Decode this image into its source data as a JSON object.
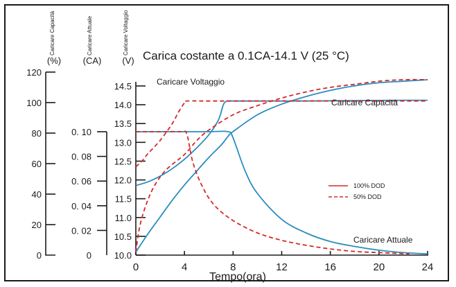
{
  "chart_data": {
    "type": "line",
    "title": "Carica costante a 0.1CA-14.1 V (25 °C)",
    "xlabel": "Tempo(ora)",
    "x_ticks": [
      "0",
      "4",
      "8",
      "12",
      "16",
      "20",
      "24"
    ],
    "xlim": [
      0,
      24
    ],
    "axes": {
      "capacity": {
        "label": "Caricare Capacità",
        "unit": "(%)",
        "ylim": [
          0,
          120
        ],
        "ticks": [
          "0",
          "20",
          "40",
          "60",
          "80",
          "100",
          "120"
        ]
      },
      "current": {
        "label": "Caricare Attuale",
        "unit": "(CA)",
        "ylim": [
          0,
          0.1
        ],
        "ticks": [
          "0",
          "0. 02",
          "0. 04",
          "0. 06",
          "0. 08",
          "0. 10"
        ]
      },
      "voltage": {
        "label": "Caricare Voltaggio",
        "unit": "(V)",
        "ylim": [
          10.0,
          14.5
        ],
        "ticks": [
          "10.0",
          "10.5",
          "11.0",
          "11.5",
          "12.0",
          "12.5",
          "13.0",
          "13.5",
          "14.0",
          "14.5"
        ]
      }
    },
    "annotations": {
      "voltage": "Caricare Voltaggio",
      "capacity": "Caricare Capacità",
      "current": "Caricare Attuale"
    },
    "legend": {
      "placement": "right",
      "entries": [
        {
          "name": "100% DOD",
          "style": "solid"
        },
        {
          "name": "50% DOD",
          "style": "dashed"
        }
      ]
    },
    "series": [
      {
        "name": "100% DOD",
        "quantity": "voltage",
        "style": "solid",
        "color": "#2a8cbf",
        "x": [
          0,
          1,
          2,
          3,
          4,
          5,
          6,
          6.8,
          7.2,
          7.5,
          7.8,
          10,
          14,
          18,
          22,
          24
        ],
        "y": [
          11.85,
          11.95,
          12.1,
          12.3,
          12.55,
          12.85,
          13.2,
          13.6,
          14.0,
          14.1,
          14.1,
          14.1,
          14.1,
          14.11,
          14.12,
          14.12
        ]
      },
      {
        "name": "100% DOD",
        "quantity": "current",
        "style": "solid",
        "color": "#2a8cbf",
        "x": [
          0,
          2,
          4,
          6,
          7.6,
          8,
          9,
          10,
          12,
          14,
          16,
          18,
          20,
          22,
          24
        ],
        "y": [
          0.1,
          0.1,
          0.1,
          0.1,
          0.1,
          0.095,
          0.068,
          0.05,
          0.029,
          0.018,
          0.011,
          0.007,
          0.004,
          0.002,
          0.001
        ]
      },
      {
        "name": "100% DOD",
        "quantity": "capacity",
        "style": "solid",
        "color": "#2a8cbf",
        "x": [
          0,
          1,
          2,
          3,
          4,
          5,
          6,
          7,
          7.6,
          8,
          10,
          12,
          14,
          16,
          18,
          20,
          22,
          24
        ],
        "y": [
          2,
          14,
          25,
          36,
          46,
          55,
          64,
          72,
          78,
          81,
          92,
          99,
          104,
          108,
          111,
          113,
          114,
          115
        ]
      },
      {
        "name": "50% DOD",
        "quantity": "voltage",
        "style": "dashed",
        "color": "#d42828",
        "x": [
          0,
          0.5,
          1,
          2,
          3,
          3.5,
          4,
          4.2,
          6,
          10,
          16,
          24
        ],
        "y": [
          12.35,
          12.5,
          12.7,
          13.05,
          13.5,
          13.8,
          14.05,
          14.1,
          14.1,
          14.1,
          14.1,
          14.1
        ]
      },
      {
        "name": "50% DOD",
        "quantity": "current",
        "style": "dashed",
        "color": "#d42828",
        "x": [
          0,
          2,
          3.8,
          4.2,
          4.7,
          5.5,
          6.5,
          8,
          10,
          12,
          14,
          16,
          18,
          20,
          22.5
        ],
        "y": [
          0.1,
          0.1,
          0.1,
          0.098,
          0.075,
          0.055,
          0.04,
          0.028,
          0.018,
          0.012,
          0.008,
          0.005,
          0.003,
          0.002,
          0.001
        ]
      },
      {
        "name": "50% DOD",
        "quantity": "capacity",
        "style": "dashed",
        "color": "#d42828",
        "x": [
          0,
          0.3,
          0.8,
          1.5,
          2.5,
          4,
          5,
          6,
          8,
          10,
          12,
          14,
          16,
          18,
          20,
          22,
          24
        ],
        "y": [
          2,
          18,
          32,
          45,
          56,
          66,
          75,
          82,
          92,
          98,
          103,
          107,
          110,
          112,
          114,
          115,
          115
        ]
      }
    ]
  }
}
